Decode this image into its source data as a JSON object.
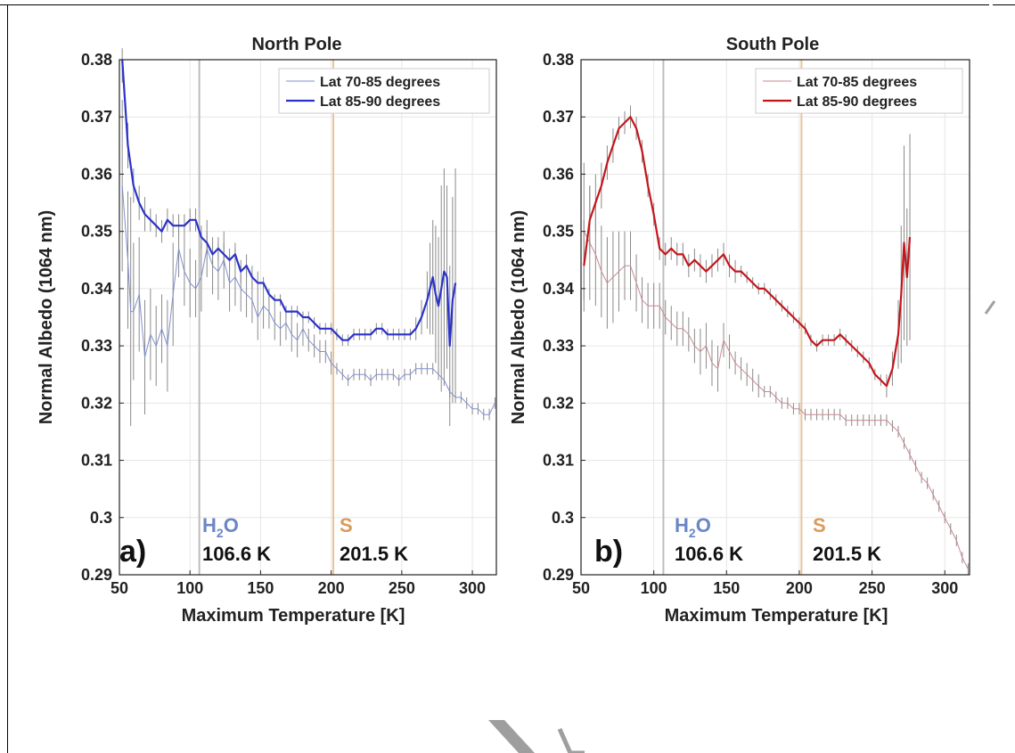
{
  "page": {},
  "annotations": {
    "h2o_main": "H",
    "h2o_sub": "2",
    "h2o_tail": "O",
    "h2o_temp": "106.6 K",
    "s_label": "S",
    "s_temp": "201.5 K",
    "h2o_color": "#6a86c4",
    "s_color": "#d99a5c"
  },
  "chart_data": [
    {
      "type": "line",
      "panel_label": "a)",
      "title": "North Pole",
      "xlabel": "Maximum Temperature [K]",
      "ylabel": "Normal Albedo (1064 nm)",
      "xlim": [
        50,
        317
      ],
      "ylim": [
        0.29,
        0.38
      ],
      "xticks": [
        50,
        100,
        150,
        200,
        250,
        300
      ],
      "yticks": [
        0.29,
        0.3,
        0.31,
        0.32,
        0.33,
        0.34,
        0.35,
        0.36,
        0.37,
        0.38
      ],
      "ytick_labels": [
        "0.29",
        "0.3",
        "0.31",
        "0.32",
        "0.33",
        "0.34",
        "0.35",
        "0.36",
        "0.37",
        "0.38"
      ],
      "xtick_labels": [
        "50",
        "100",
        "150",
        "200",
        "250",
        "300"
      ],
      "grid": true,
      "legend_position": "top-right",
      "vlines": [
        {
          "x": 106.6,
          "color": "#bdbdbd"
        },
        {
          "x": 201.5,
          "color": "#e9c49a"
        }
      ],
      "series": [
        {
          "name": "Lat 70-85 degrees",
          "color": "#7f8fcf",
          "width": 1,
          "x": [
            52,
            56,
            58,
            60,
            64,
            68,
            72,
            76,
            80,
            84,
            88,
            92,
            96,
            100,
            104,
            108,
            112,
            116,
            120,
            124,
            128,
            132,
            136,
            140,
            144,
            148,
            152,
            156,
            160,
            164,
            168,
            172,
            176,
            180,
            184,
            188,
            192,
            196,
            200,
            204,
            208,
            212,
            216,
            220,
            224,
            228,
            232,
            236,
            240,
            244,
            248,
            252,
            256,
            260,
            264,
            268,
            272,
            276,
            280,
            284,
            288,
            292,
            296,
            300,
            304,
            308,
            312,
            316
          ],
          "y": [
            0.358,
            0.345,
            0.336,
            0.336,
            0.339,
            0.328,
            0.332,
            0.33,
            0.333,
            0.33,
            0.339,
            0.347,
            0.343,
            0.341,
            0.34,
            0.342,
            0.347,
            0.344,
            0.343,
            0.345,
            0.341,
            0.342,
            0.34,
            0.339,
            0.338,
            0.335,
            0.337,
            0.336,
            0.334,
            0.333,
            0.334,
            0.332,
            0.331,
            0.333,
            0.331,
            0.33,
            0.329,
            0.329,
            0.327,
            0.326,
            0.325,
            0.324,
            0.325,
            0.325,
            0.325,
            0.324,
            0.325,
            0.325,
            0.325,
            0.325,
            0.324,
            0.325,
            0.325,
            0.326,
            0.326,
            0.326,
            0.326,
            0.325,
            0.324,
            0.322,
            0.321,
            0.321,
            0.32,
            0.319,
            0.319,
            0.318,
            0.318,
            0.32
          ],
          "err": [
            0.015,
            0.012,
            0.02,
            0.012,
            0.01,
            0.01,
            0.008,
            0.007,
            0.006,
            0.008,
            0.009,
            0.005,
            0.006,
            0.006,
            0.005,
            0.006,
            0.005,
            0.005,
            0.005,
            0.005,
            0.005,
            0.005,
            0.004,
            0.004,
            0.004,
            0.004,
            0.004,
            0.003,
            0.003,
            0.003,
            0.003,
            0.003,
            0.003,
            0.003,
            0.002,
            0.002,
            0.002,
            0.002,
            0.002,
            0.001,
            0.001,
            0.001,
            0.001,
            0.001,
            0.001,
            0.001,
            0.001,
            0.001,
            0.001,
            0.001,
            0.001,
            0.001,
            0.001,
            0.001,
            0.001,
            0.001,
            0.001,
            0.001,
            0.001,
            0.001,
            0.001,
            0.001,
            0.001,
            0.001,
            0.001,
            0.001,
            0.001,
            0.001
          ]
        },
        {
          "name": "Lat 85-90 degrees",
          "color": "#2b32c8",
          "width": 2.2,
          "x": [
            52,
            56,
            60,
            64,
            68,
            72,
            76,
            80,
            84,
            88,
            92,
            96,
            100,
            104,
            108,
            112,
            116,
            120,
            124,
            128,
            132,
            136,
            140,
            144,
            148,
            152,
            156,
            160,
            164,
            168,
            172,
            176,
            180,
            184,
            188,
            192,
            196,
            200,
            204,
            208,
            212,
            216,
            220,
            224,
            228,
            232,
            236,
            240,
            244,
            248,
            252,
            256,
            260,
            264,
            268,
            270,
            272,
            274,
            276,
            278,
            280,
            282,
            284,
            286,
            288
          ],
          "y": [
            0.38,
            0.365,
            0.358,
            0.355,
            0.353,
            0.352,
            0.351,
            0.35,
            0.352,
            0.351,
            0.351,
            0.351,
            0.352,
            0.352,
            0.349,
            0.348,
            0.346,
            0.347,
            0.346,
            0.345,
            0.346,
            0.343,
            0.344,
            0.342,
            0.341,
            0.341,
            0.339,
            0.338,
            0.338,
            0.336,
            0.336,
            0.336,
            0.335,
            0.335,
            0.334,
            0.333,
            0.333,
            0.333,
            0.332,
            0.331,
            0.331,
            0.332,
            0.332,
            0.332,
            0.332,
            0.333,
            0.333,
            0.332,
            0.332,
            0.332,
            0.332,
            0.332,
            0.333,
            0.335,
            0.338,
            0.34,
            0.342,
            0.339,
            0.337,
            0.34,
            0.343,
            0.342,
            0.33,
            0.338,
            0.341
          ],
          "err": [
            0.004,
            0.004,
            0.003,
            0.003,
            0.003,
            0.002,
            0.002,
            0.002,
            0.002,
            0.002,
            0.002,
            0.002,
            0.002,
            0.002,
            0.002,
            0.002,
            0.002,
            0.002,
            0.002,
            0.002,
            0.002,
            0.002,
            0.002,
            0.002,
            0.002,
            0.001,
            0.001,
            0.001,
            0.001,
            0.001,
            0.001,
            0.001,
            0.001,
            0.001,
            0.001,
            0.001,
            0.001,
            0.001,
            0.001,
            0.001,
            0.001,
            0.001,
            0.001,
            0.001,
            0.001,
            0.001,
            0.001,
            0.001,
            0.001,
            0.001,
            0.001,
            0.001,
            0.002,
            0.003,
            0.005,
            0.008,
            0.01,
            0.012,
            0.012,
            0.018,
            0.018,
            0.016,
            0.014,
            0.018,
            0.02
          ]
        }
      ]
    },
    {
      "type": "line",
      "panel_label": "b)",
      "title": "South Pole",
      "xlabel": "Maximum Temperature [K]",
      "ylabel": "Normal Albedo (1064 nm)",
      "xlim": [
        50,
        317
      ],
      "ylim": [
        0.29,
        0.38
      ],
      "xticks": [
        50,
        100,
        150,
        200,
        250,
        300
      ],
      "yticks": [
        0.29,
        0.3,
        0.31,
        0.32,
        0.33,
        0.34,
        0.35,
        0.36,
        0.37,
        0.38
      ],
      "ytick_labels": [
        "0.29",
        "0.3",
        "0.31",
        "0.32",
        "0.33",
        "0.34",
        "0.35",
        "0.36",
        "0.37",
        "0.38"
      ],
      "xtick_labels": [
        "50",
        "100",
        "150",
        "200",
        "250",
        "300"
      ],
      "grid": true,
      "legend_position": "top-right",
      "vlines": [
        {
          "x": 106.6,
          "color": "#bdbdbd"
        },
        {
          "x": 201.5,
          "color": "#e9c49a"
        }
      ],
      "series": [
        {
          "name": "Lat 70-85 degrees",
          "color": "#c8898f",
          "width": 1,
          "x": [
            52,
            56,
            60,
            64,
            68,
            72,
            76,
            80,
            84,
            88,
            92,
            96,
            100,
            104,
            108,
            112,
            116,
            120,
            124,
            128,
            132,
            136,
            140,
            144,
            148,
            152,
            156,
            160,
            164,
            168,
            172,
            176,
            180,
            184,
            188,
            192,
            196,
            200,
            204,
            208,
            212,
            216,
            220,
            224,
            228,
            232,
            236,
            240,
            244,
            248,
            252,
            256,
            260,
            264,
            268,
            272,
            276,
            280,
            284,
            288,
            292,
            296,
            300,
            304,
            308,
            312,
            316
          ],
          "y": [
            0.35,
            0.348,
            0.346,
            0.343,
            0.341,
            0.342,
            0.343,
            0.344,
            0.344,
            0.341,
            0.338,
            0.337,
            0.337,
            0.337,
            0.335,
            0.334,
            0.333,
            0.333,
            0.332,
            0.33,
            0.329,
            0.33,
            0.327,
            0.326,
            0.331,
            0.329,
            0.327,
            0.326,
            0.325,
            0.324,
            0.323,
            0.322,
            0.322,
            0.321,
            0.32,
            0.32,
            0.319,
            0.319,
            0.318,
            0.318,
            0.318,
            0.318,
            0.318,
            0.318,
            0.318,
            0.317,
            0.317,
            0.317,
            0.317,
            0.317,
            0.317,
            0.317,
            0.317,
            0.316,
            0.315,
            0.313,
            0.311,
            0.309,
            0.307,
            0.306,
            0.304,
            0.302,
            0.3,
            0.298,
            0.296,
            0.293,
            0.291
          ],
          "err": [
            0.012,
            0.01,
            0.009,
            0.008,
            0.008,
            0.008,
            0.007,
            0.006,
            0.006,
            0.005,
            0.004,
            0.004,
            0.004,
            0.004,
            0.003,
            0.003,
            0.003,
            0.003,
            0.003,
            0.003,
            0.004,
            0.004,
            0.004,
            0.004,
            0.003,
            0.003,
            0.002,
            0.002,
            0.002,
            0.002,
            0.002,
            0.001,
            0.001,
            0.001,
            0.001,
            0.001,
            0.001,
            0.001,
            0.001,
            0.001,
            0.001,
            0.001,
            0.001,
            0.001,
            0.001,
            0.001,
            0.001,
            0.001,
            0.001,
            0.001,
            0.001,
            0.001,
            0.001,
            0.001,
            0.001,
            0.001,
            0.001,
            0.001,
            0.001,
            0.001,
            0.001,
            0.001,
            0.001,
            0.001,
            0.001,
            0.001,
            0.001
          ]
        },
        {
          "name": "Lat 85-90 degrees",
          "color": "#c3161c",
          "width": 2.2,
          "x": [
            52,
            56,
            60,
            64,
            68,
            72,
            76,
            80,
            84,
            88,
            92,
            96,
            100,
            104,
            108,
            112,
            116,
            120,
            124,
            128,
            132,
            136,
            140,
            144,
            148,
            152,
            156,
            160,
            164,
            168,
            172,
            176,
            180,
            184,
            188,
            192,
            196,
            200,
            204,
            208,
            212,
            216,
            220,
            224,
            228,
            232,
            236,
            240,
            244,
            248,
            252,
            256,
            260,
            264,
            268,
            270,
            272,
            274,
            276
          ],
          "y": [
            0.344,
            0.352,
            0.355,
            0.358,
            0.362,
            0.365,
            0.368,
            0.369,
            0.37,
            0.368,
            0.364,
            0.358,
            0.353,
            0.347,
            0.346,
            0.347,
            0.346,
            0.346,
            0.344,
            0.345,
            0.344,
            0.343,
            0.344,
            0.345,
            0.346,
            0.344,
            0.343,
            0.343,
            0.342,
            0.341,
            0.34,
            0.34,
            0.339,
            0.338,
            0.337,
            0.336,
            0.335,
            0.334,
            0.333,
            0.331,
            0.33,
            0.331,
            0.331,
            0.331,
            0.332,
            0.331,
            0.33,
            0.329,
            0.328,
            0.327,
            0.325,
            0.324,
            0.323,
            0.326,
            0.332,
            0.339,
            0.348,
            0.342,
            0.349
          ],
          "err": [
            0.008,
            0.006,
            0.005,
            0.004,
            0.003,
            0.003,
            0.002,
            0.002,
            0.002,
            0.002,
            0.002,
            0.002,
            0.002,
            0.002,
            0.002,
            0.002,
            0.002,
            0.002,
            0.002,
            0.002,
            0.002,
            0.002,
            0.002,
            0.002,
            0.002,
            0.002,
            0.002,
            0.001,
            0.001,
            0.001,
            0.001,
            0.001,
            0.001,
            0.001,
            0.001,
            0.001,
            0.001,
            0.001,
            0.001,
            0.001,
            0.001,
            0.001,
            0.001,
            0.001,
            0.001,
            0.001,
            0.001,
            0.001,
            0.001,
            0.001,
            0.001,
            0.001,
            0.002,
            0.003,
            0.006,
            0.012,
            0.017,
            0.012,
            0.018
          ]
        }
      ]
    }
  ]
}
